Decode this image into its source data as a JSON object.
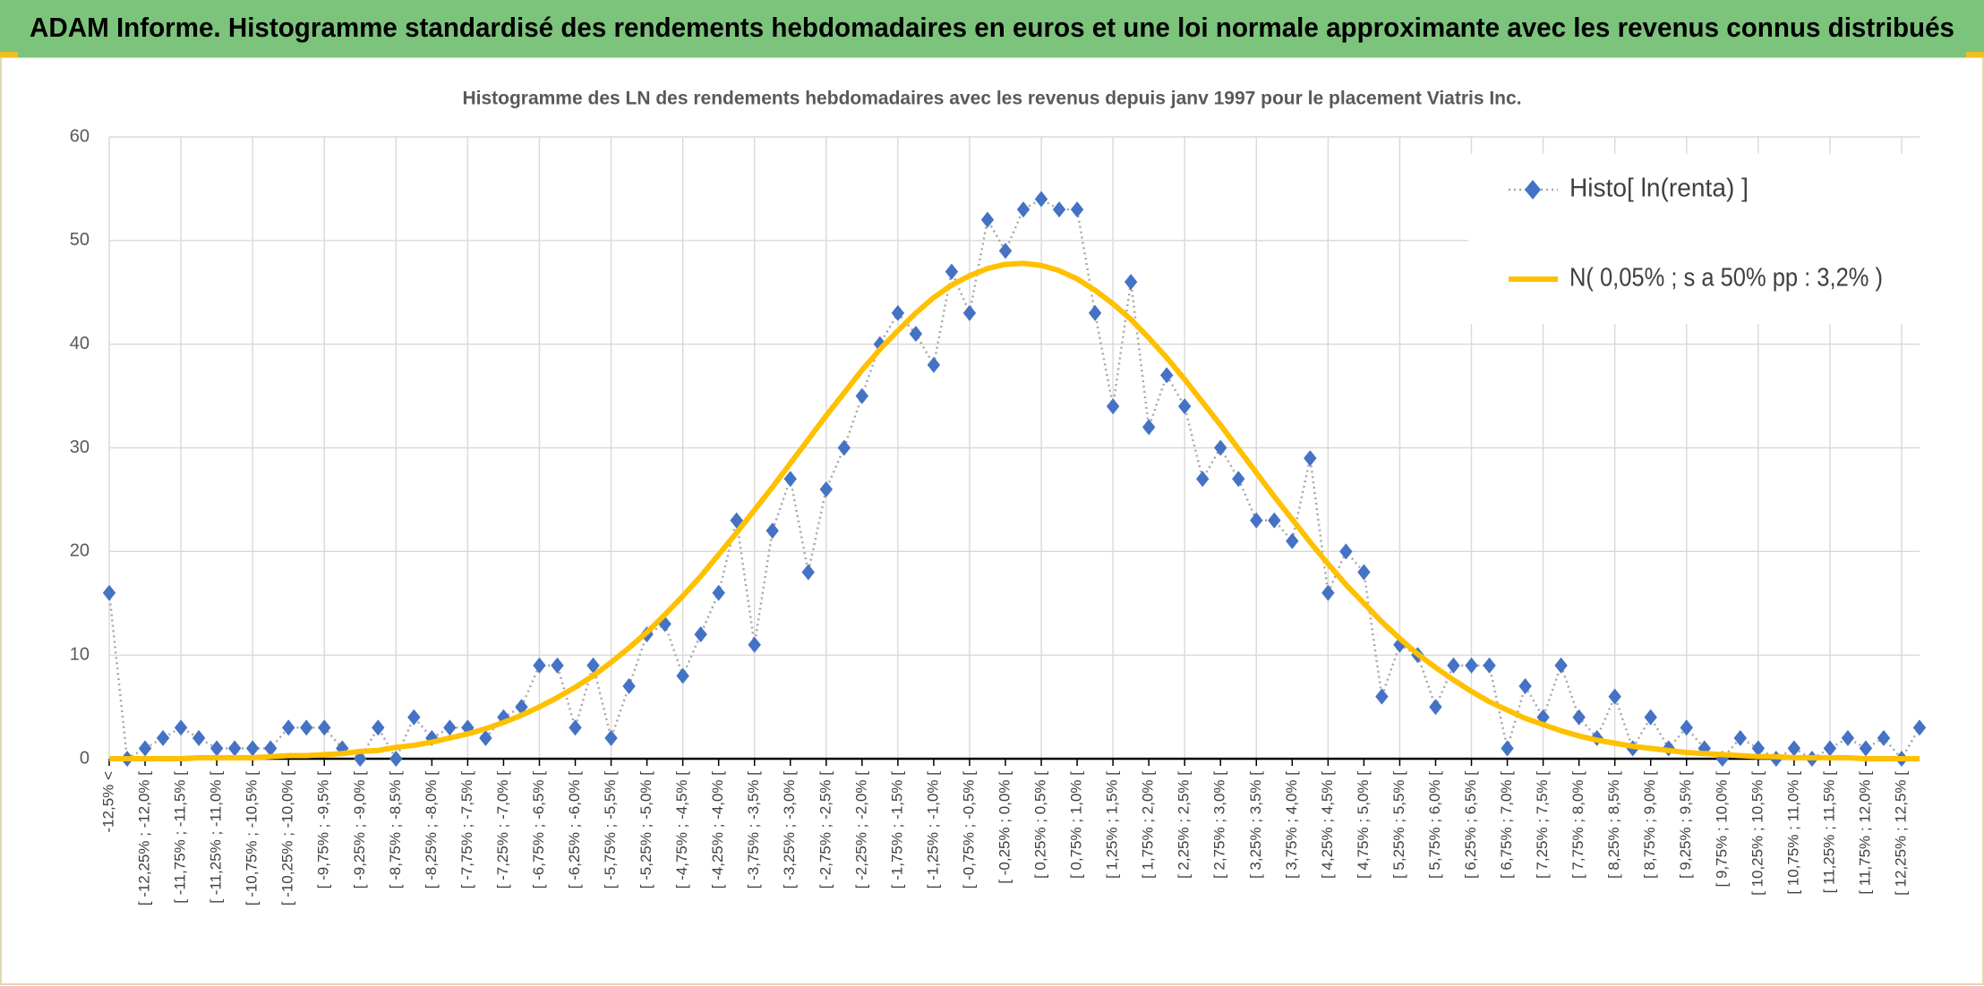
{
  "chart_data": {
    "type": "line",
    "header": "ADAM Informe. Histogramme standardisé des rendements hebdomadaires en euros et une loi normale approximante avec les revenus connus distribués",
    "title": "Histogramme des LN des rendements hebdomadaires avec les revenus depuis janv 1997 pour le placement Viatris Inc.",
    "categories": [
      "-12,5% <",
      null,
      "[ -12,25% ; -12,0% [",
      null,
      "[ -11,75% ; -11,5% [",
      null,
      "[ -11,25% ; -11,0% [",
      null,
      "[ -10,75% ; -10,5% [",
      null,
      "[ -10,25% ; -10,0% [",
      null,
      "[ -9,75% ; -9,5% [",
      null,
      "[ -9,25% ; -9,0% [",
      null,
      "[ -8,75% ; -8,5% [",
      null,
      "[ -8,25% ; -8,0% [",
      null,
      "[ -7,75% ; -7,5% [",
      null,
      "[ -7,25% ; -7,0% [",
      null,
      "[ -6,75% ; -6,5% [",
      null,
      "[ -6,25% ; -6,0% [",
      null,
      "[ -5,75% ; -5,5% [",
      null,
      "[ -5,25% ; -5,0% [",
      null,
      "[ -4,75% ; -4,5% [",
      null,
      "[ -4,25% ; -4,0% [",
      null,
      "[ -3,75% ; -3,5% [",
      null,
      "[ -3,25% ; -3,0% [",
      null,
      "[ -2,75% ; -2,5% [",
      null,
      "[ -2,25% ; -2,0% [",
      null,
      "[ -1,75% ; -1,5% [",
      null,
      "[ -1,25% ; -1,0% [",
      null,
      "[ -0,75% ; -0,5% [",
      null,
      "[ -0,25% ; 0,0% [",
      null,
      "[ 0,25% ; 0,5% [",
      null,
      "[ 0,75% ; 1,0% [",
      null,
      "[ 1,25% ; 1,5% [",
      null,
      "[ 1,75% ; 2,0% [",
      null,
      "[ 2,25% ; 2,5% [",
      null,
      "[ 2,75% ; 3,0% [",
      null,
      "[ 3,25% ; 3,5% [",
      null,
      "[ 3,75% ; 4,0% [",
      null,
      "[ 4,25% ; 4,5% [",
      null,
      "[ 4,75% ; 5,0% [",
      null,
      "[ 5,25% ; 5,5% [",
      null,
      "[ 5,75% ; 6,0% [",
      null,
      "[ 6,25% ; 6,5% [",
      null,
      "[ 6,75% ; 7,0% [",
      null,
      "[ 7,25% ; 7,5% [",
      null,
      "[ 7,75% ; 8,0% [",
      null,
      "[ 8,25% ; 8,5% [",
      null,
      "[ 8,75% ; 9,0% [",
      null,
      "[ 9,25% ; 9,5% [",
      null,
      "[ 9,75% ; 10,0% [",
      null,
      "[ 10,25% ; 10,5% [",
      null,
      "[ 10,75% ; 11,0% [",
      null,
      "[ 11,25% ; 11,5% [",
      null,
      "[ 11,75% ; 12,0% [",
      null,
      "[ 12,25% ; 12,5% [",
      null
    ],
    "series": [
      {
        "name": "Histo[ ln(renta) ]",
        "color": "#4472c4",
        "line_color": "#a6a6a6",
        "marker": "diamond",
        "values": [
          16,
          0,
          1,
          2,
          3,
          2,
          1,
          1,
          1,
          1,
          3,
          3,
          3,
          1,
          0,
          3,
          0,
          4,
          2,
          3,
          3,
          2,
          4,
          5,
          9,
          9,
          3,
          9,
          2,
          7,
          12,
          13,
          8,
          12,
          16,
          23,
          11,
          22,
          27,
          18,
          26,
          30,
          35,
          40,
          43,
          41,
          38,
          47,
          43,
          52,
          49,
          53,
          54,
          53,
          53,
          43,
          34,
          46,
          32,
          37,
          34,
          27,
          30,
          27,
          23,
          23,
          21,
          29,
          16,
          20,
          18,
          6,
          11,
          10,
          5,
          9,
          9,
          9,
          1,
          7,
          4,
          9,
          4,
          2,
          6,
          1,
          4,
          1,
          3,
          1,
          0,
          2,
          1,
          0,
          1,
          0,
          1,
          2,
          1,
          2,
          0,
          3
        ]
      },
      {
        "name": "N( 0,05% ; s a 50% pp : 3,2% )",
        "color": "#ffc000",
        "values": [
          0,
          0,
          0,
          0,
          0,
          0.1,
          0.1,
          0.1,
          0.1,
          0.2,
          0.3,
          0.3,
          0.4,
          0.5,
          0.7,
          0.8,
          1.1,
          1.3,
          1.6,
          2.0,
          2.4,
          2.9,
          3.5,
          4.2,
          5.0,
          5.9,
          6.9,
          8.0,
          9.3,
          10.7,
          12.2,
          13.9,
          15.7,
          17.6,
          19.7,
          21.8,
          24.0,
          26.2,
          28.5,
          30.8,
          33.1,
          35.3,
          37.5,
          39.5,
          41.3,
          43.0,
          44.5,
          45.7,
          46.6,
          47.3,
          47.7,
          47.8,
          47.6,
          47.1,
          46.3,
          45.2,
          43.9,
          42.4,
          40.6,
          38.7,
          36.6,
          34.4,
          32.2,
          29.9,
          27.6,
          25.3,
          23.1,
          20.9,
          18.8,
          16.8,
          15.0,
          13.2,
          11.6,
          10.1,
          8.8,
          7.6,
          6.5,
          5.5,
          4.7,
          3.9,
          3.3,
          2.7,
          2.2,
          1.8,
          1.5,
          1.2,
          1.0,
          0.8,
          0.6,
          0.5,
          0.4,
          0.3,
          0.2,
          0.2,
          0.1,
          0.1,
          0.1,
          0.1,
          0,
          0,
          0,
          0
        ]
      }
    ],
    "ylim": [
      0,
      60
    ],
    "yticks": [
      0,
      10,
      20,
      30,
      40,
      50,
      60
    ],
    "grid": true,
    "legend": "top-right"
  }
}
